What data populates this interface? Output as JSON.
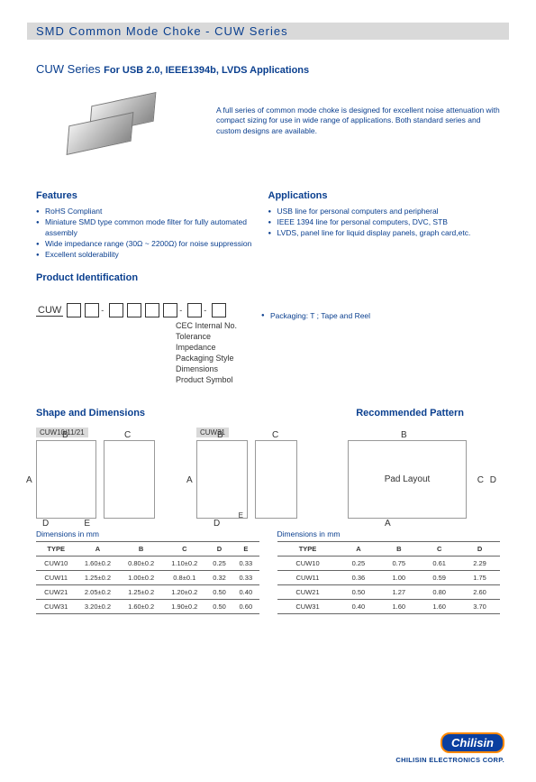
{
  "header": "SMD Common Mode Choke - CUW Series",
  "series_title": "CUW Series",
  "series_for": "For USB 2.0, IEEE1394b, LVDS Applications",
  "intro_text": "A full series of common mode choke is designed for excellent noise attenuation with compact sizing for use in wide range of applications. Both standard series and custom designs are available.",
  "features_title": "Features",
  "features": [
    "RoHS Compliant",
    "Miniature SMD type common mode filter for fully automated assembly",
    "Wide impedance range (30Ω ~ 2200Ω) for noise suppression",
    "Excellent solderability"
  ],
  "applications_title": "Applications",
  "applications": [
    "USB line for personal computers and peripheral",
    "IEEE 1394 line for personal computers, DVC, STB",
    "LVDS, panel line for liquid display panels, graph card,etc."
  ],
  "prod_ident_title": "Product Identification",
  "packaging_note": "Packaging: T ; Tape and Reel",
  "ident_labels": {
    "l1": "CEC Internal No.",
    "l2": "Tolerance",
    "l3": "Impedance",
    "l4": "Packaging Style",
    "l5": "Dimensions",
    "l6": "Product Symbol"
  },
  "cuw_label": "CUW",
  "shapes_title": "Shape and Dimensions",
  "pattern_title": "Recommended Pattern",
  "shape_label1": "CUW10/11/21",
  "shape_label2": "CUW31",
  "pad_layout": "Pad Layout",
  "dim_mm": "Dimensions in mm",
  "table1": {
    "columns": [
      "TYPE",
      "A",
      "B",
      "C",
      "D",
      "E"
    ],
    "rows": [
      [
        "CUW10",
        "1.60±0.2",
        "0.80±0.2",
        "1.10±0.2",
        "0.25",
        "0.33"
      ],
      [
        "CUW11",
        "1.25±0.2",
        "1.00±0.2",
        "0.8±0.1",
        "0.32",
        "0.33"
      ],
      [
        "CUW21",
        "2.05±0.2",
        "1.25±0.2",
        "1.20±0.2",
        "0.50",
        "0.40"
      ],
      [
        "CUW31",
        "3.20±0.2",
        "1.60±0.2",
        "1.90±0.2",
        "0.50",
        "0.60"
      ]
    ]
  },
  "table2": {
    "columns": [
      "TYPE",
      "A",
      "B",
      "C",
      "D"
    ],
    "rows": [
      [
        "CUW10",
        "0.25",
        "0.75",
        "0.61",
        "2.29"
      ],
      [
        "CUW11",
        "0.36",
        "1.00",
        "0.59",
        "1.75"
      ],
      [
        "CUW21",
        "0.50",
        "1.27",
        "0.80",
        "2.60"
      ],
      [
        "CUW31",
        "0.40",
        "1.60",
        "1.60",
        "3.70"
      ]
    ]
  },
  "corp_name": "CHILISIN ELECTRONICS CORP.",
  "logo_text": "Chilisin"
}
